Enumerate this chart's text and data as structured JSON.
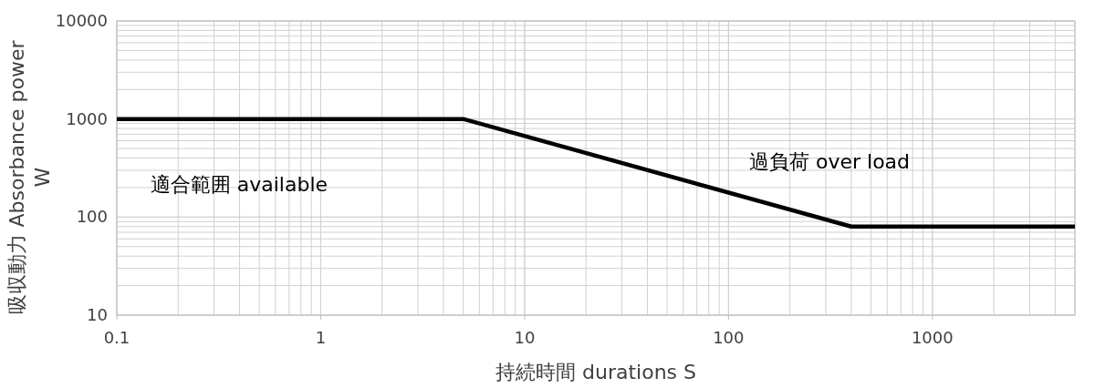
{
  "chart_data": {
    "type": "line",
    "xlabel": "持続時間  durations S",
    "ylabel": "吸収動力 Absorbance power W",
    "log": "xy",
    "grid": true,
    "line_style": "solid",
    "xlim": [
      0.1,
      5000
    ],
    "xticks": [
      0.1,
      1,
      10,
      100,
      1000
    ],
    "ylim": [
      10,
      10000
    ],
    "yticks": [
      10,
      100,
      1000,
      10000
    ],
    "series": [
      {
        "color": "#000000",
        "x": [
          0.1,
          5,
          400,
          5000
        ],
        "values": [
          1000,
          1000,
          80,
          80
        ]
      }
    ],
    "annotations": [
      "適合範囲  available",
      "過負荷  over load"
    ]
  }
}
